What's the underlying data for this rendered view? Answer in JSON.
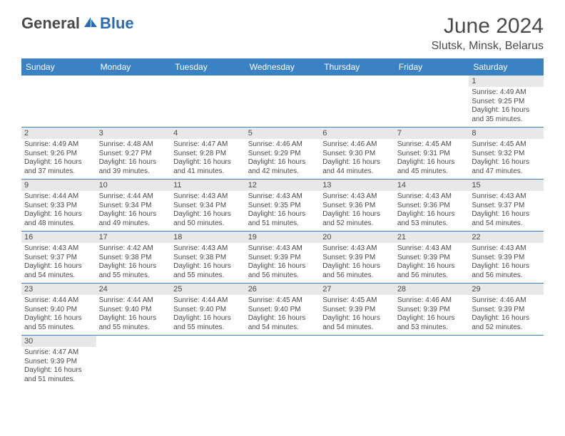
{
  "logo": {
    "text_general": "General",
    "text_blue": "Blue"
  },
  "title": "June 2024",
  "location": "Slutsk, Minsk, Belarus",
  "colors": {
    "header_bg": "#3b82c4",
    "header_text": "#ffffff",
    "daynum_bg": "#e8e8e8",
    "border": "#3b82c4",
    "text": "#4a4a4a",
    "brand_blue": "#2a6db0"
  },
  "weekdays": [
    "Sunday",
    "Monday",
    "Tuesday",
    "Wednesday",
    "Thursday",
    "Friday",
    "Saturday"
  ],
  "weeks": [
    [
      null,
      null,
      null,
      null,
      null,
      null,
      {
        "d": "1",
        "sr": "Sunrise: 4:49 AM",
        "ss": "Sunset: 9:25 PM",
        "dl": "Daylight: 16 hours and 35 minutes."
      }
    ],
    [
      {
        "d": "2",
        "sr": "Sunrise: 4:49 AM",
        "ss": "Sunset: 9:26 PM",
        "dl": "Daylight: 16 hours and 37 minutes."
      },
      {
        "d": "3",
        "sr": "Sunrise: 4:48 AM",
        "ss": "Sunset: 9:27 PM",
        "dl": "Daylight: 16 hours and 39 minutes."
      },
      {
        "d": "4",
        "sr": "Sunrise: 4:47 AM",
        "ss": "Sunset: 9:28 PM",
        "dl": "Daylight: 16 hours and 41 minutes."
      },
      {
        "d": "5",
        "sr": "Sunrise: 4:46 AM",
        "ss": "Sunset: 9:29 PM",
        "dl": "Daylight: 16 hours and 42 minutes."
      },
      {
        "d": "6",
        "sr": "Sunrise: 4:46 AM",
        "ss": "Sunset: 9:30 PM",
        "dl": "Daylight: 16 hours and 44 minutes."
      },
      {
        "d": "7",
        "sr": "Sunrise: 4:45 AM",
        "ss": "Sunset: 9:31 PM",
        "dl": "Daylight: 16 hours and 45 minutes."
      },
      {
        "d": "8",
        "sr": "Sunrise: 4:45 AM",
        "ss": "Sunset: 9:32 PM",
        "dl": "Daylight: 16 hours and 47 minutes."
      }
    ],
    [
      {
        "d": "9",
        "sr": "Sunrise: 4:44 AM",
        "ss": "Sunset: 9:33 PM",
        "dl": "Daylight: 16 hours and 48 minutes."
      },
      {
        "d": "10",
        "sr": "Sunrise: 4:44 AM",
        "ss": "Sunset: 9:34 PM",
        "dl": "Daylight: 16 hours and 49 minutes."
      },
      {
        "d": "11",
        "sr": "Sunrise: 4:43 AM",
        "ss": "Sunset: 9:34 PM",
        "dl": "Daylight: 16 hours and 50 minutes."
      },
      {
        "d": "12",
        "sr": "Sunrise: 4:43 AM",
        "ss": "Sunset: 9:35 PM",
        "dl": "Daylight: 16 hours and 51 minutes."
      },
      {
        "d": "13",
        "sr": "Sunrise: 4:43 AM",
        "ss": "Sunset: 9:36 PM",
        "dl": "Daylight: 16 hours and 52 minutes."
      },
      {
        "d": "14",
        "sr": "Sunrise: 4:43 AM",
        "ss": "Sunset: 9:36 PM",
        "dl": "Daylight: 16 hours and 53 minutes."
      },
      {
        "d": "15",
        "sr": "Sunrise: 4:43 AM",
        "ss": "Sunset: 9:37 PM",
        "dl": "Daylight: 16 hours and 54 minutes."
      }
    ],
    [
      {
        "d": "16",
        "sr": "Sunrise: 4:43 AM",
        "ss": "Sunset: 9:37 PM",
        "dl": "Daylight: 16 hours and 54 minutes."
      },
      {
        "d": "17",
        "sr": "Sunrise: 4:42 AM",
        "ss": "Sunset: 9:38 PM",
        "dl": "Daylight: 16 hours and 55 minutes."
      },
      {
        "d": "18",
        "sr": "Sunrise: 4:43 AM",
        "ss": "Sunset: 9:38 PM",
        "dl": "Daylight: 16 hours and 55 minutes."
      },
      {
        "d": "19",
        "sr": "Sunrise: 4:43 AM",
        "ss": "Sunset: 9:39 PM",
        "dl": "Daylight: 16 hours and 56 minutes."
      },
      {
        "d": "20",
        "sr": "Sunrise: 4:43 AM",
        "ss": "Sunset: 9:39 PM",
        "dl": "Daylight: 16 hours and 56 minutes."
      },
      {
        "d": "21",
        "sr": "Sunrise: 4:43 AM",
        "ss": "Sunset: 9:39 PM",
        "dl": "Daylight: 16 hours and 56 minutes."
      },
      {
        "d": "22",
        "sr": "Sunrise: 4:43 AM",
        "ss": "Sunset: 9:39 PM",
        "dl": "Daylight: 16 hours and 56 minutes."
      }
    ],
    [
      {
        "d": "23",
        "sr": "Sunrise: 4:44 AM",
        "ss": "Sunset: 9:40 PM",
        "dl": "Daylight: 16 hours and 55 minutes."
      },
      {
        "d": "24",
        "sr": "Sunrise: 4:44 AM",
        "ss": "Sunset: 9:40 PM",
        "dl": "Daylight: 16 hours and 55 minutes."
      },
      {
        "d": "25",
        "sr": "Sunrise: 4:44 AM",
        "ss": "Sunset: 9:40 PM",
        "dl": "Daylight: 16 hours and 55 minutes."
      },
      {
        "d": "26",
        "sr": "Sunrise: 4:45 AM",
        "ss": "Sunset: 9:40 PM",
        "dl": "Daylight: 16 hours and 54 minutes."
      },
      {
        "d": "27",
        "sr": "Sunrise: 4:45 AM",
        "ss": "Sunset: 9:39 PM",
        "dl": "Daylight: 16 hours and 54 minutes."
      },
      {
        "d": "28",
        "sr": "Sunrise: 4:46 AM",
        "ss": "Sunset: 9:39 PM",
        "dl": "Daylight: 16 hours and 53 minutes."
      },
      {
        "d": "29",
        "sr": "Sunrise: 4:46 AM",
        "ss": "Sunset: 9:39 PM",
        "dl": "Daylight: 16 hours and 52 minutes."
      }
    ],
    [
      {
        "d": "30",
        "sr": "Sunrise: 4:47 AM",
        "ss": "Sunset: 9:39 PM",
        "dl": "Daylight: 16 hours and 51 minutes."
      },
      null,
      null,
      null,
      null,
      null,
      null
    ]
  ]
}
